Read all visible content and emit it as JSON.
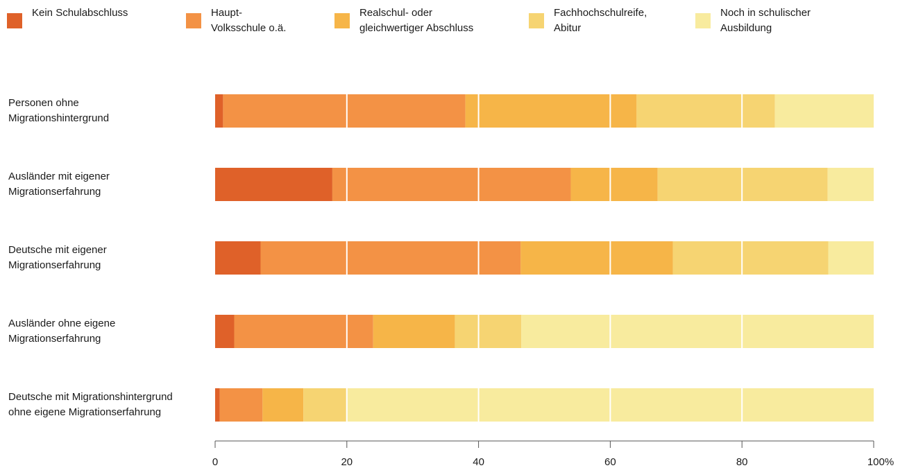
{
  "chart_data": {
    "type": "bar",
    "orientation": "horizontal",
    "stacked": true,
    "categories": [
      "Personen ohne\nMigrationshintergrund",
      "Ausländer mit eigener\nMigrationserfahrung",
      "Deutsche mit eigener\nMigrationserfahrung",
      "Ausländer ohne eigene\nMigrationserfahrung",
      "Deutsche mit Migrationshintergrund\nohne eigene Migrationserfahrung"
    ],
    "series": [
      {
        "name": "Kein Schulabschluss",
        "color": "#df6129",
        "values": [
          1.2,
          17.8,
          6.9,
          2.9,
          0.7
        ]
      },
      {
        "name": "Haupt-\nVolksschule o.ä.",
        "color": "#f39245",
        "values": [
          36.8,
          36.2,
          39.5,
          21.1,
          6.5
        ]
      },
      {
        "name": "Realschul- oder\ngleichwertiger Abschluss",
        "color": "#f6b548",
        "values": [
          26.0,
          13.2,
          23.1,
          12.4,
          6.2
        ]
      },
      {
        "name": "Fachhochschulreife,\nAbitur",
        "color": "#f6d472",
        "values": [
          21.0,
          25.8,
          23.6,
          10.1,
          6.5
        ]
      },
      {
        "name": "Noch in schulischer\nAusbildung",
        "color": "#f8eb9e",
        "values": [
          15.0,
          7.0,
          6.9,
          53.5,
          80.1
        ]
      }
    ],
    "xlim": [
      0,
      100
    ],
    "x_ticks": [
      "0",
      "20",
      "40",
      "60",
      "80",
      "100%"
    ],
    "legend_position": "top",
    "grid": true
  }
}
